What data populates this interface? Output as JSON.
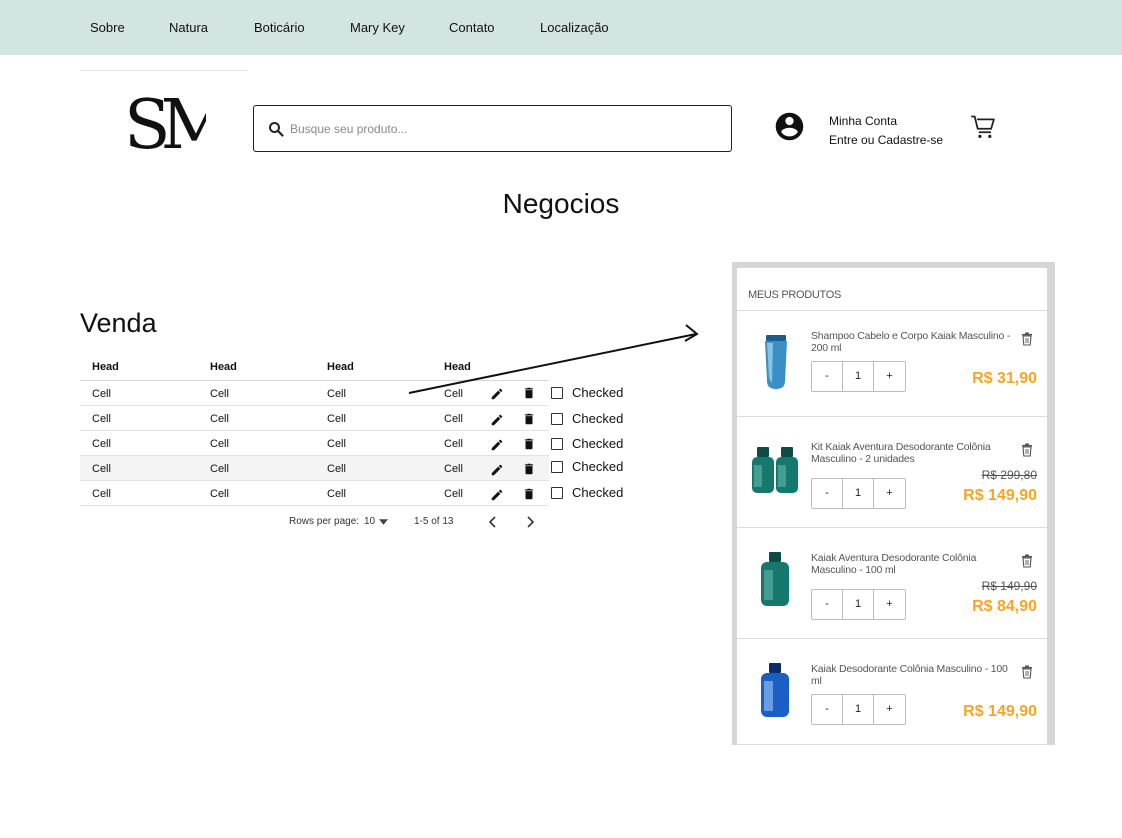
{
  "nav": [
    "Sobre",
    "Natura",
    "Boticário",
    "Mary Key",
    "Contato",
    "Localização"
  ],
  "logo": {
    "text": "SM"
  },
  "search": {
    "placeholder": "Busque seu produto..."
  },
  "account": {
    "line1": "Minha Conta",
    "line2": "Entre ou Cadastre-se"
  },
  "page_title": "Negocios",
  "section_title": "Venda",
  "table": {
    "headers": [
      "Head",
      "Head",
      "Head",
      "Head"
    ],
    "rows": [
      {
        "cells": [
          "Cell",
          "Cell",
          "Cell",
          "Cell"
        ],
        "check_label": "Checked"
      },
      {
        "cells": [
          "Cell",
          "Cell",
          "Cell",
          "Cell"
        ],
        "check_label": "Checked"
      },
      {
        "cells": [
          "Cell",
          "Cell",
          "Cell",
          "Cell"
        ],
        "check_label": "Checked"
      },
      {
        "cells": [
          "Cell",
          "Cell",
          "Cell",
          "Cell"
        ],
        "check_label": "Checked"
      },
      {
        "cells": [
          "Cell",
          "Cell",
          "Cell",
          "Cell"
        ],
        "check_label": "Checked"
      }
    ],
    "pagination": {
      "rows_label": "Rows per page:",
      "rows_value": "10",
      "range": "1-5 of 13"
    }
  },
  "cart": {
    "header": "MEUS PRODUTOS",
    "items": [
      {
        "name": "Shampoo Cabelo e Corpo Kaiak Masculino -  200 ml",
        "qty": "1",
        "old_price": "",
        "price": "R$ 31,90"
      },
      {
        "name": "Kit Kaiak Aventura Desodorante Colônia Masculino - 2 unidades",
        "qty": "1",
        "old_price": "R$ 299,80",
        "price": "R$ 149,90"
      },
      {
        "name": "Kaiak Aventura Desodorante Colônia Masculino - 100 ml",
        "qty": "1",
        "old_price": "R$ 149,90",
        "price": "R$ 84,90"
      },
      {
        "name": "Kaiak Desodorante Colônia Masculino - 100 ml",
        "qty": "1",
        "old_price": "",
        "price": "R$ 149,90"
      }
    ],
    "qty_minus": "-",
    "qty_plus": "+"
  },
  "colors": {
    "nav_bg": "#d3e5e3",
    "price": "#f5a623",
    "panel_border": "#d6d6d6"
  }
}
